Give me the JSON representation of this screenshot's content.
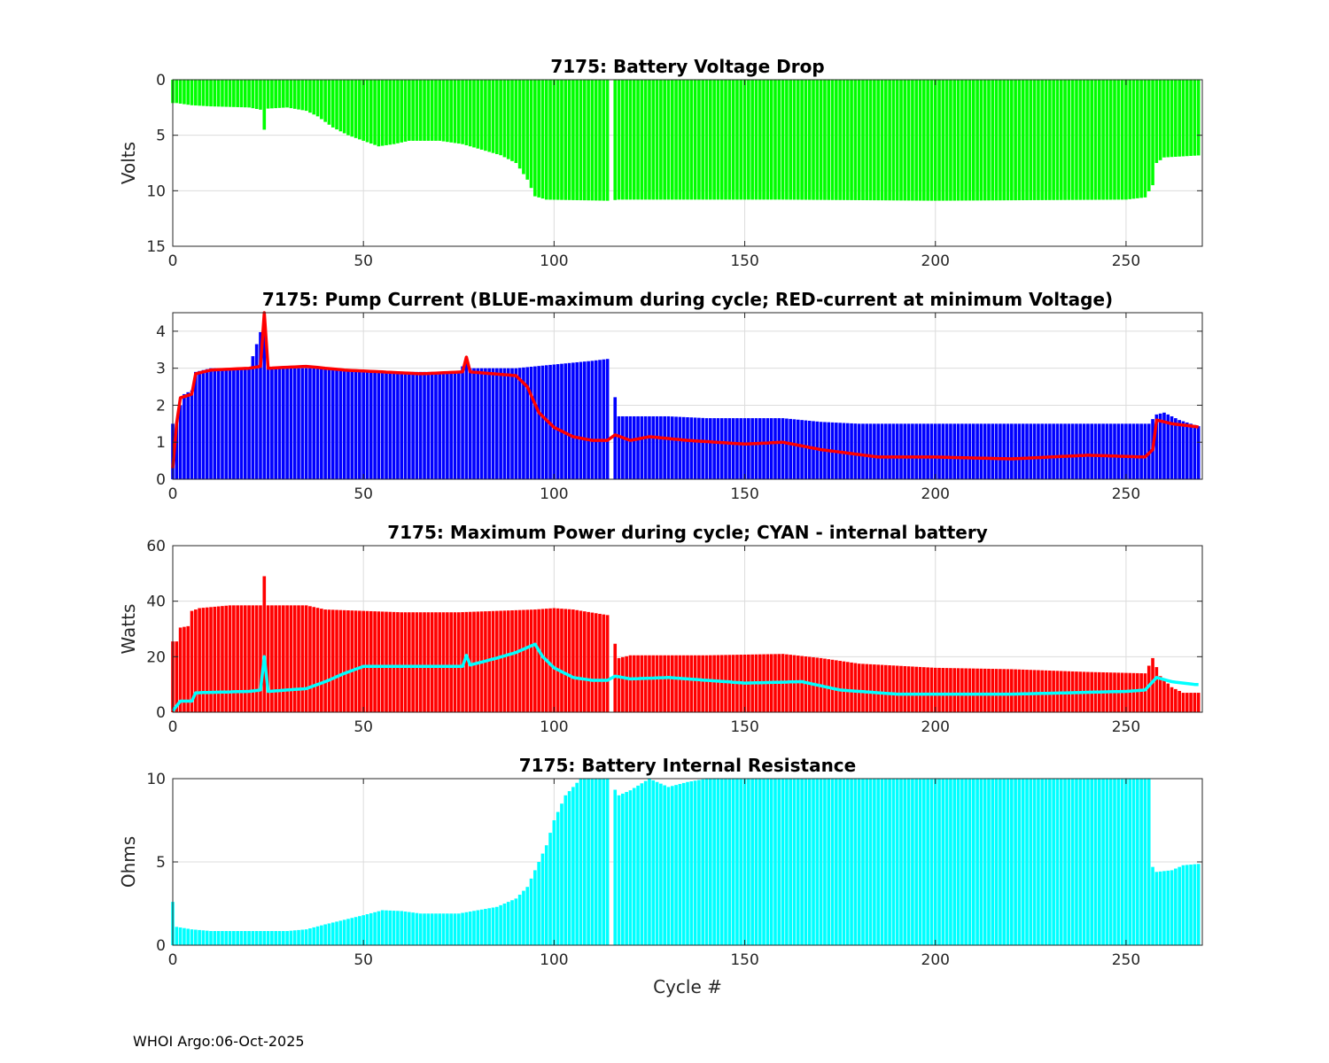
{
  "footer": "WHOI Argo:06-Oct-2025",
  "chart_data": [
    {
      "type": "bar",
      "title": "7175: Battery Voltage Drop",
      "xlabel": "",
      "ylabel": "Volts",
      "xlim": [
        0,
        270
      ],
      "ylim": [
        0,
        15
      ],
      "y_reversed": true,
      "xticks": [
        0,
        50,
        100,
        150,
        200,
        250
      ],
      "yticks": [
        0,
        5,
        10,
        15
      ],
      "grid": true,
      "bar_color": "#00ff00",
      "bars_profile": [
        [
          1,
          2.1
        ],
        [
          5,
          2.3
        ],
        [
          10,
          2.4
        ],
        [
          20,
          2.5
        ],
        [
          23,
          2.7
        ],
        [
          24,
          4.5
        ],
        [
          25,
          2.6
        ],
        [
          30,
          2.5
        ],
        [
          35,
          2.8
        ],
        [
          38,
          3.3
        ],
        [
          42,
          4.3
        ],
        [
          46,
          5.0
        ],
        [
          50,
          5.5
        ],
        [
          54,
          6.0
        ],
        [
          58,
          5.8
        ],
        [
          62,
          5.5
        ],
        [
          70,
          5.5
        ],
        [
          76,
          5.8
        ],
        [
          80,
          6.2
        ],
        [
          86,
          6.8
        ],
        [
          90,
          7.5
        ],
        [
          93,
          9.0
        ],
        [
          95,
          10.5
        ],
        [
          98,
          10.8
        ],
        [
          114,
          10.9
        ],
        [
          117,
          10.8
        ],
        [
          160,
          10.8
        ],
        [
          200,
          10.9
        ],
        [
          250,
          10.8
        ],
        [
          255,
          10.6
        ],
        [
          257,
          9.5
        ],
        [
          258,
          7.5
        ],
        [
          260,
          7.0
        ],
        [
          270,
          6.8
        ]
      ]
    },
    {
      "type": "bar",
      "title": "7175: Pump Current (BLUE-maximum during cycle; RED-current at minimum Voltage)",
      "xlabel": "",
      "ylabel": "",
      "xlim": [
        0,
        270
      ],
      "ylim": [
        0,
        4.5
      ],
      "xticks": [
        0,
        50,
        100,
        150,
        200,
        250
      ],
      "yticks": [
        0,
        1,
        2,
        3,
        4
      ],
      "grid": true,
      "series": [
        {
          "mark": "bar",
          "color": "#0000ff",
          "profile": [
            [
              1,
              1.5
            ],
            [
              2,
              2.0
            ],
            [
              3,
              2.3
            ],
            [
              5,
              2.4
            ],
            [
              6,
              2.9
            ],
            [
              10,
              3.0
            ],
            [
              20,
              3.0
            ],
            [
              24,
              4.3
            ],
            [
              25,
              3.0
            ],
            [
              40,
              3.0
            ],
            [
              55,
              2.9
            ],
            [
              65,
              2.9
            ],
            [
              75,
              2.9
            ],
            [
              77,
              3.2
            ],
            [
              78,
              3.0
            ],
            [
              90,
              3.0
            ],
            [
              100,
              3.1
            ],
            [
              110,
              3.2
            ],
            [
              114,
              3.25
            ],
            [
              117,
              1.7
            ],
            [
              130,
              1.7
            ],
            [
              140,
              1.65
            ],
            [
              160,
              1.65
            ],
            [
              170,
              1.55
            ],
            [
              180,
              1.5
            ],
            [
              200,
              1.5
            ],
            [
              250,
              1.5
            ],
            [
              256,
              1.5
            ],
            [
              258,
              1.75
            ],
            [
              260,
              1.8
            ],
            [
              264,
              1.6
            ],
            [
              270,
              1.4
            ]
          ]
        },
        {
          "mark": "line",
          "color": "#ff0000",
          "profile": [
            [
              0,
              0.3
            ],
            [
              1,
              1.5
            ],
            [
              2,
              2.2
            ],
            [
              5,
              2.3
            ],
            [
              6,
              2.85
            ],
            [
              10,
              2.95
            ],
            [
              20,
              3.0
            ],
            [
              23,
              3.05
            ],
            [
              24,
              4.5
            ],
            [
              25,
              3.0
            ],
            [
              35,
              3.05
            ],
            [
              45,
              2.95
            ],
            [
              55,
              2.9
            ],
            [
              65,
              2.85
            ],
            [
              76,
              2.9
            ],
            [
              77,
              3.3
            ],
            [
              78,
              2.9
            ],
            [
              90,
              2.8
            ],
            [
              93,
              2.5
            ],
            [
              96,
              1.8
            ],
            [
              100,
              1.4
            ],
            [
              105,
              1.15
            ],
            [
              110,
              1.05
            ],
            [
              114,
              1.05
            ],
            [
              116,
              1.2
            ],
            [
              120,
              1.05
            ],
            [
              125,
              1.15
            ],
            [
              135,
              1.05
            ],
            [
              150,
              0.95
            ],
            [
              160,
              1.0
            ],
            [
              170,
              0.8
            ],
            [
              185,
              0.6
            ],
            [
              200,
              0.6
            ],
            [
              220,
              0.55
            ],
            [
              240,
              0.65
            ],
            [
              255,
              0.6
            ],
            [
              257,
              0.8
            ],
            [
              258,
              1.6
            ],
            [
              262,
              1.5
            ],
            [
              270,
              1.4
            ]
          ]
        }
      ]
    },
    {
      "type": "bar",
      "title": "7175: Maximum Power during cycle; CYAN - internal battery",
      "xlabel": "",
      "ylabel": "Watts",
      "xlim": [
        0,
        270
      ],
      "ylim": [
        0,
        60
      ],
      "xticks": [
        0,
        50,
        100,
        150,
        200,
        250
      ],
      "yticks": [
        0,
        20,
        40,
        60
      ],
      "grid": true,
      "series": [
        {
          "mark": "bar",
          "color": "#ff0000",
          "profile": [
            [
              1,
              25.5
            ],
            [
              2,
              30.5
            ],
            [
              4,
              31
            ],
            [
              5,
              36.5
            ],
            [
              7,
              37.5
            ],
            [
              15,
              38.5
            ],
            [
              23,
              38.5
            ],
            [
              24,
              49
            ],
            [
              25,
              38.5
            ],
            [
              35,
              38.5
            ],
            [
              40,
              37
            ],
            [
              50,
              36.5
            ],
            [
              60,
              36
            ],
            [
              75,
              36
            ],
            [
              85,
              36.5
            ],
            [
              95,
              37
            ],
            [
              100,
              37.5
            ],
            [
              105,
              37
            ],
            [
              114,
              35
            ],
            [
              117,
              19.5
            ],
            [
              120,
              20.5
            ],
            [
              140,
              20.5
            ],
            [
              160,
              21
            ],
            [
              170,
              19.5
            ],
            [
              180,
              17.5
            ],
            [
              200,
              16
            ],
            [
              220,
              15.5
            ],
            [
              240,
              14.5
            ],
            [
              255,
              14
            ],
            [
              257,
              19.5
            ],
            [
              259,
              13
            ],
            [
              262,
              9
            ],
            [
              265,
              7
            ],
            [
              270,
              7
            ]
          ]
        },
        {
          "mark": "line",
          "color": "#00ffff",
          "profile": [
            [
              0,
              0.5
            ],
            [
              2,
              4
            ],
            [
              5,
              4
            ],
            [
              6,
              7
            ],
            [
              20,
              7.5
            ],
            [
              23,
              8
            ],
            [
              24,
              20
            ],
            [
              25,
              7.5
            ],
            [
              35,
              8.5
            ],
            [
              40,
              11
            ],
            [
              45,
              14
            ],
            [
              50,
              16.5
            ],
            [
              60,
              16.5
            ],
            [
              75,
              16.5
            ],
            [
              76,
              16.5
            ],
            [
              77,
              20.5
            ],
            [
              78,
              17
            ],
            [
              85,
              19.5
            ],
            [
              90,
              21.5
            ],
            [
              95,
              24.5
            ],
            [
              97,
              20
            ],
            [
              100,
              16
            ],
            [
              105,
              12.5
            ],
            [
              110,
              11.5
            ],
            [
              114,
              11.5
            ],
            [
              116,
              13
            ],
            [
              120,
              12
            ],
            [
              130,
              12.5
            ],
            [
              150,
              10.5
            ],
            [
              165,
              11
            ],
            [
              175,
              8
            ],
            [
              190,
              6.5
            ],
            [
              220,
              6.5
            ],
            [
              250,
              7.5
            ],
            [
              255,
              8
            ],
            [
              258,
              12.5
            ],
            [
              262,
              11
            ],
            [
              268,
              10
            ],
            [
              270,
              10
            ]
          ]
        }
      ]
    },
    {
      "type": "bar",
      "title": "7175: Battery Internal Resistance",
      "xlabel": "Cycle #",
      "ylabel": "Ohms",
      "xlim": [
        0,
        270
      ],
      "ylim": [
        0,
        10
      ],
      "xticks": [
        0,
        50,
        100,
        150,
        200,
        250
      ],
      "yticks": [
        0,
        5,
        10
      ],
      "grid": true,
      "bar_color": "#00ffff",
      "bars_profile": [
        [
          0,
          2.6
        ],
        [
          1,
          1.1
        ],
        [
          5,
          0.95
        ],
        [
          10,
          0.85
        ],
        [
          20,
          0.85
        ],
        [
          30,
          0.85
        ],
        [
          35,
          0.95
        ],
        [
          40,
          1.25
        ],
        [
          50,
          1.8
        ],
        [
          55,
          2.1
        ],
        [
          60,
          2.05
        ],
        [
          65,
          1.9
        ],
        [
          75,
          1.9
        ],
        [
          80,
          2.1
        ],
        [
          85,
          2.3
        ],
        [
          90,
          2.8
        ],
        [
          93,
          3.5
        ],
        [
          95,
          4.5
        ],
        [
          98,
          6.0
        ],
        [
          100,
          7.5
        ],
        [
          103,
          9.0
        ],
        [
          107,
          10.0
        ],
        [
          114,
          10.0
        ],
        [
          117,
          9.0
        ],
        [
          120,
          9.3
        ],
        [
          125,
          10.0
        ],
        [
          130,
          9.5
        ],
        [
          135,
          9.8
        ],
        [
          140,
          10.0
        ],
        [
          256,
          10.0
        ],
        [
          257,
          4.7
        ],
        [
          258,
          4.4
        ],
        [
          262,
          4.5
        ],
        [
          265,
          4.8
        ],
        [
          270,
          4.9
        ]
      ]
    }
  ]
}
